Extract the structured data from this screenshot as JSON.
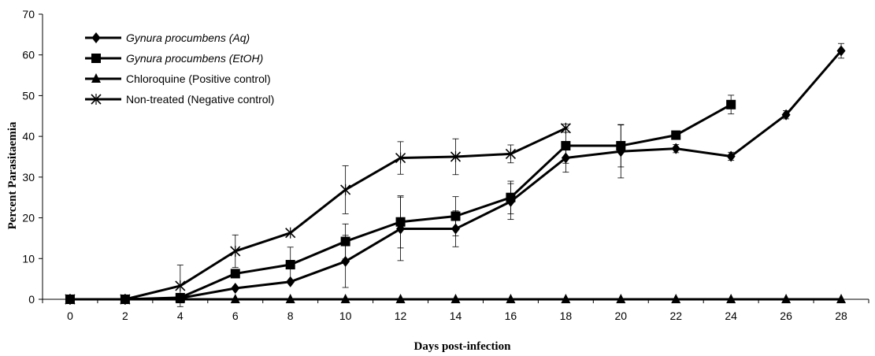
{
  "chart_data": {
    "type": "line",
    "title": "",
    "xlabel": "Days post-infection",
    "ylabel": "Percent Parasitaemia",
    "xlim": [
      0,
      28
    ],
    "ylim": [
      0,
      70
    ],
    "x_ticks": [
      0,
      2,
      4,
      6,
      8,
      10,
      12,
      14,
      16,
      18,
      20,
      22,
      24,
      26,
      28
    ],
    "y_ticks": [
      0,
      10,
      20,
      30,
      40,
      50,
      60,
      70
    ],
    "grid": false,
    "legend_position": "top-left",
    "series": [
      {
        "name": "Gynura procumbens (Aq)",
        "marker": "diamond",
        "italic": true,
        "x": [
          0,
          2,
          4,
          6,
          8,
          10,
          12,
          14,
          16,
          18,
          20,
          22,
          24,
          26,
          28
        ],
        "y": [
          0,
          0,
          0.3,
          2.7,
          4.3,
          9.3,
          17.3,
          17.3,
          24,
          34.7,
          36.3,
          37,
          35.1,
          45.3,
          61
        ],
        "err": [
          0,
          0,
          0,
          0,
          0,
          6.4,
          7.8,
          4.4,
          4.4,
          3.5,
          6.5,
          1.0,
          1.0,
          1.0,
          1.8
        ]
      },
      {
        "name": "Gynura procumbens (EtOH)",
        "marker": "square",
        "italic": true,
        "x": [
          0,
          2,
          4,
          6,
          8,
          10,
          12,
          14,
          16,
          18,
          20,
          22,
          24
        ],
        "y": [
          0,
          0,
          0.4,
          6.3,
          8.5,
          14.2,
          19,
          20.4,
          25,
          37.7,
          37.7,
          40.3,
          47.8
        ],
        "err": [
          0,
          0,
          0,
          0,
          4.3,
          4.3,
          6.4,
          4.8,
          4.0,
          4.3,
          5.2,
          1.0,
          2.3
        ]
      },
      {
        "name": "Chloroquine (Positive control)",
        "marker": "triangle",
        "italic": false,
        "x": [
          0,
          2,
          4,
          6,
          8,
          10,
          12,
          14,
          16,
          18,
          20,
          22,
          24,
          26,
          28
        ],
        "y": [
          0,
          0,
          0,
          0,
          0,
          0,
          0,
          0,
          0,
          0,
          0,
          0,
          0,
          0,
          0
        ],
        "err": [
          0,
          0,
          0,
          0,
          0,
          0,
          0,
          0,
          0,
          0,
          0,
          0,
          0,
          0,
          0
        ]
      },
      {
        "name": "Non-treated (Negative control)",
        "marker": "x",
        "italic": false,
        "x": [
          0,
          2,
          4,
          6,
          8,
          10,
          12,
          14,
          16,
          18
        ],
        "y": [
          0,
          0,
          3.3,
          11.8,
          16.3,
          26.9,
          34.7,
          35,
          35.7,
          42
        ],
        "err": [
          0,
          0,
          5.1,
          4.0,
          0,
          5.9,
          4.0,
          4.4,
          2.2,
          1.0
        ]
      }
    ]
  }
}
